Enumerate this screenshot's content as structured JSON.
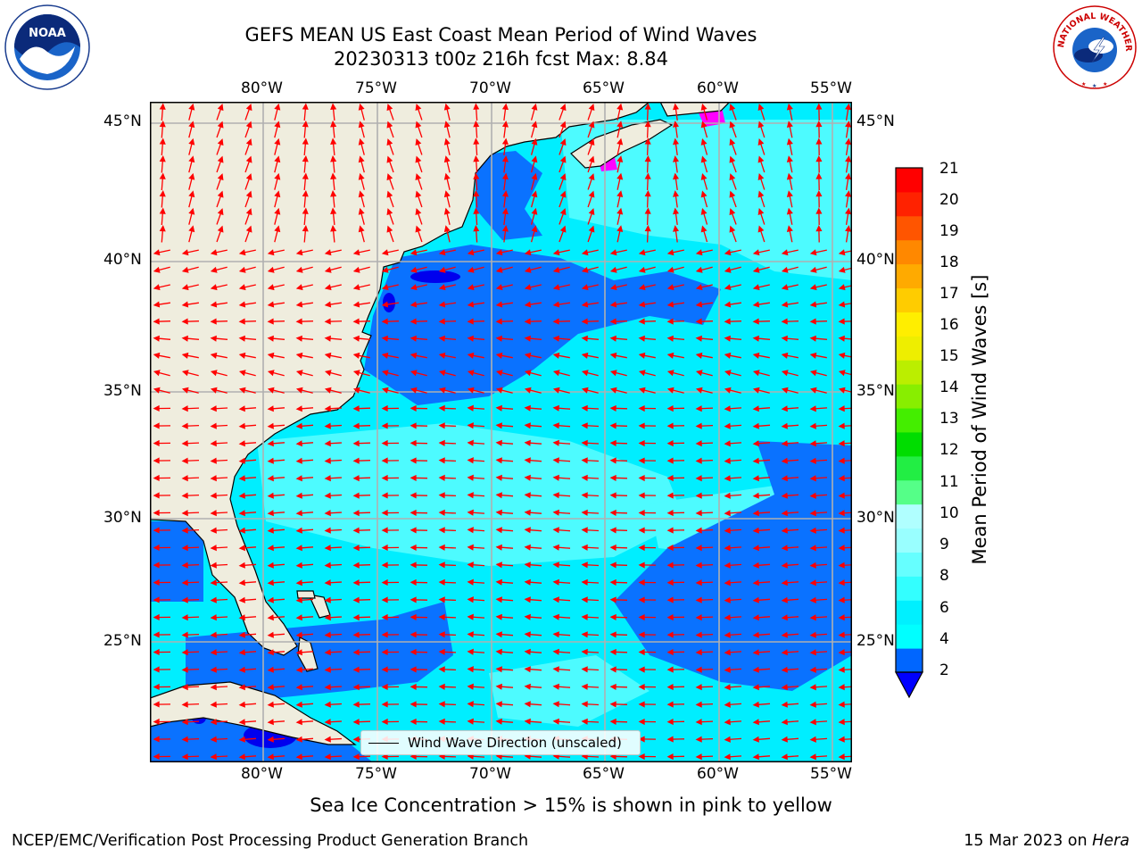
{
  "title": {
    "line1": "GEFS MEAN US East Coast Mean Period of Wind Waves",
    "line2": "20230313 t00z 216h fcst   Max: 8.84"
  },
  "logos": {
    "left": {
      "name": "noaa-logo",
      "text": "NOAA"
    },
    "right": {
      "name": "nws-logo",
      "text": "NATIONAL WEATHER SERVICE"
    }
  },
  "map": {
    "lon_range": [
      -85,
      -54.3
    ],
    "lat_range": [
      20.2,
      46
    ],
    "lon_ticks": [
      "80°W",
      "75°W",
      "70°W",
      "65°W",
      "60°W",
      "55°W"
    ],
    "lat_ticks": [
      "45°N",
      "40°N",
      "35°N",
      "30°N",
      "25°N"
    ],
    "grid": true,
    "land_color": "#efedde",
    "vector_color": "#ff0000",
    "ice_color": "#ff00ff"
  },
  "legend": {
    "label": "Wind Wave Direction (unscaled)",
    "placement": "lower-center"
  },
  "colorbar": {
    "label": "Mean Period of Wind Waves [s]",
    "ticks": [
      "21",
      "20",
      "19",
      "18",
      "17",
      "16",
      "15",
      "14",
      "13",
      "12",
      "11",
      "10",
      "9",
      "8",
      "6",
      "4",
      "2"
    ],
    "levels": [
      2,
      3,
      4,
      5,
      6,
      7,
      8,
      9,
      10,
      11,
      12,
      13,
      14,
      15,
      16,
      17,
      18,
      19,
      20,
      21
    ],
    "colors": [
      "#0066ff",
      "#00ffff",
      "#00f0ff",
      "#33ffff",
      "#66ffff",
      "#99ffff",
      "#b0ffff",
      "#55ff88",
      "#22ee44",
      "#00dd00",
      "#44ee00",
      "#88ee00",
      "#bbee00",
      "#eeee00",
      "#ffee00",
      "#ffcc00",
      "#ffaa00",
      "#ff8800",
      "#ff5500",
      "#ff2200",
      "#ff0000"
    ],
    "extend_color": "#0000ff"
  },
  "caption": "Sea Ice Concentration > 15% is shown in pink to yellow",
  "footer": {
    "left": "NCEP/EMC/Verification Post Processing Product Generation Branch",
    "right_prefix": "15 Mar 2023 on ",
    "right_italic": "Hera"
  }
}
